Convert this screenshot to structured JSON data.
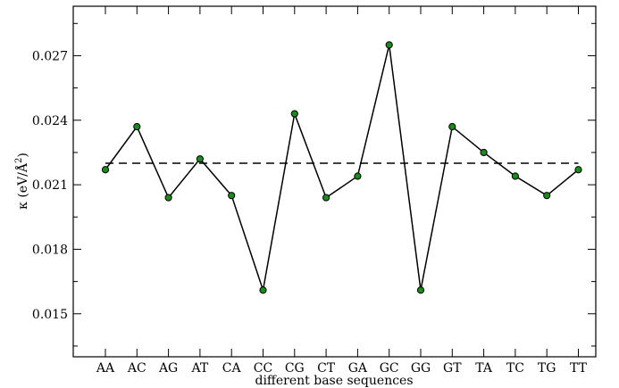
{
  "chart_data": {
    "type": "line",
    "title": "",
    "xlabel": "different base sequences",
    "ylabel": "κ (eV/Å²)",
    "ylabel_parts": {
      "symbol": "κ",
      "unit_open": "(eV/",
      "unit_angstrom": "Å",
      "unit_power": "2",
      "unit_close": ")"
    },
    "categories": [
      "AA",
      "AC",
      "AG",
      "AT",
      "CA",
      "CC",
      "CG",
      "CT",
      "GA",
      "GC",
      "GG",
      "GT",
      "TA",
      "TC",
      "TG",
      "TT"
    ],
    "series": [
      {
        "values": [
          0.0217,
          0.0237,
          0.0204,
          0.0222,
          0.0205,
          0.0161,
          0.0243,
          0.0204,
          0.0214,
          0.0275,
          0.0161,
          0.0237,
          0.0225,
          0.0214,
          0.0205,
          0.0217
        ],
        "color": "#1a8a1a"
      }
    ],
    "reference_line": {
      "value": 0.022,
      "style": "dashed"
    },
    "ylim": [
      0.013,
      0.0293
    ],
    "yticks": [
      0.015,
      0.018,
      0.021,
      0.024,
      0.027
    ],
    "ytick_labels": [
      "0.015",
      "0.018",
      "0.021",
      "0.024",
      "0.027"
    ],
    "grid": false,
    "legend": "none"
  }
}
